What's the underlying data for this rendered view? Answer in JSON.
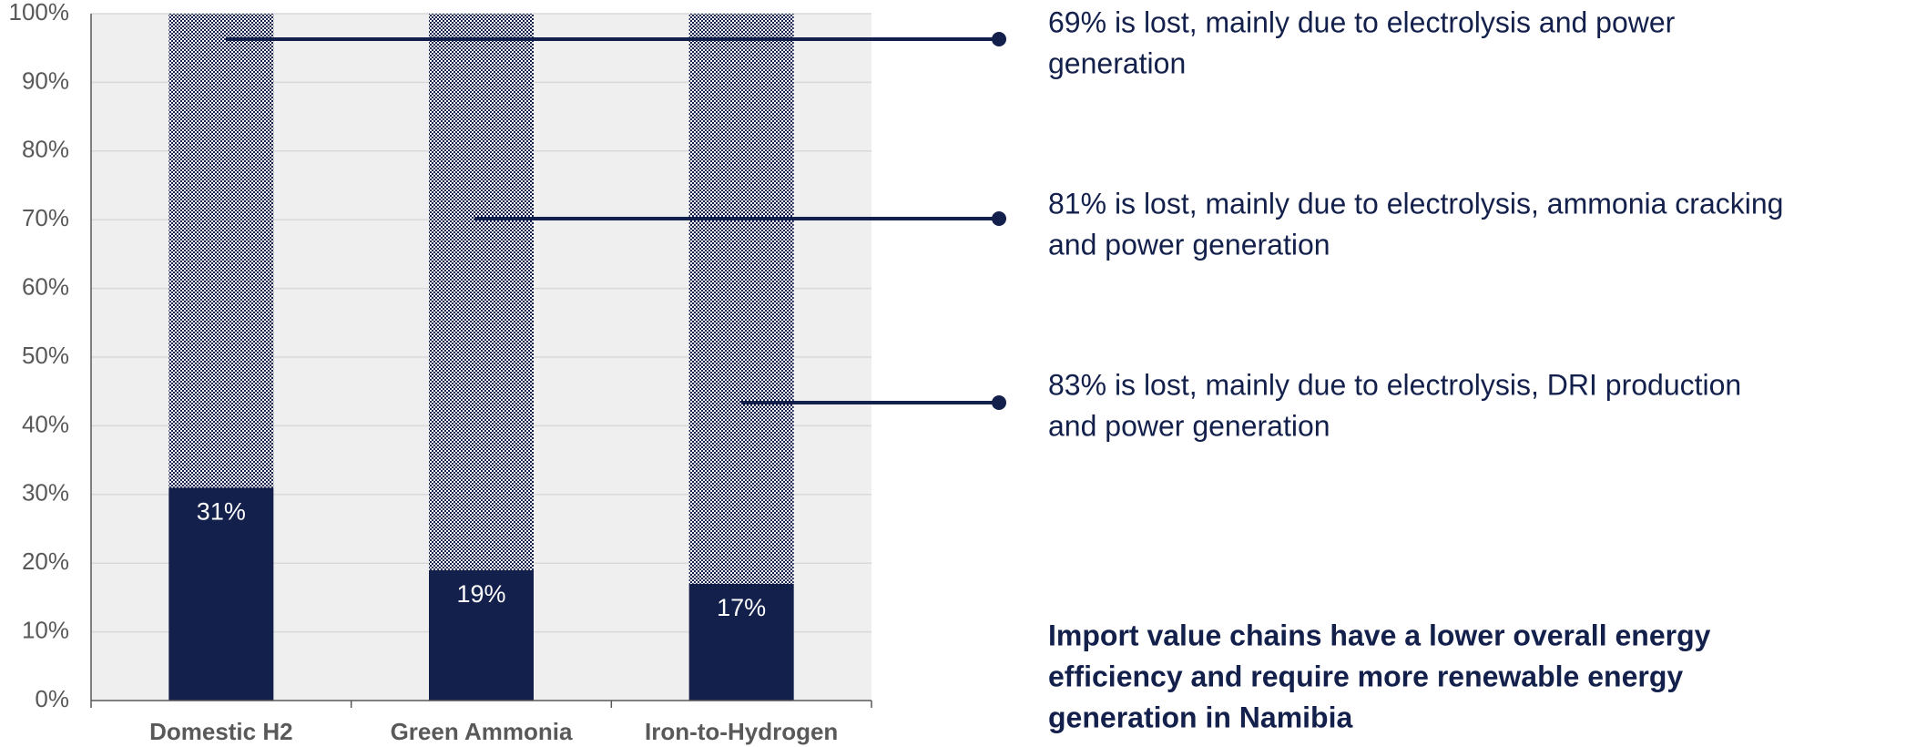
{
  "chart_data": {
    "type": "stacked_bar",
    "categories": [
      "Domestic H2",
      "Green Ammonia",
      "Iron-to-Hydrogen"
    ],
    "series": [
      {
        "color": "#13204b",
        "values": [
          31,
          19,
          17
        ],
        "value_labels": [
          "31%",
          "19%",
          "17%"
        ]
      },
      {
        "color": "#13204b",
        "pattern": "checker",
        "values": [
          69,
          81,
          83
        ]
      }
    ],
    "ylim": [
      0,
      100
    ],
    "yticks": [
      {
        "value": 0,
        "label": "0%"
      },
      {
        "value": 10,
        "label": "10%"
      },
      {
        "value": 20,
        "label": "20%"
      },
      {
        "value": 30,
        "label": "30%"
      },
      {
        "value": 40,
        "label": "40%"
      },
      {
        "value": 50,
        "label": "50%"
      },
      {
        "value": 60,
        "label": "60%"
      },
      {
        "value": 70,
        "label": "70%"
      },
      {
        "value": 80,
        "label": "80%"
      },
      {
        "value": 90,
        "label": "90%"
      },
      {
        "value": 100,
        "label": "100%"
      }
    ],
    "grid": true,
    "annotations": [
      [
        "69% is lost, mainly due to electrolysis and power",
        "generation"
      ],
      [
        "81% is lost, mainly due to electrolysis, ammonia cracking",
        "and power generation"
      ],
      [
        "83% is lost, mainly due to electrolysis, DRI production",
        "and power generation"
      ]
    ],
    "conclusion": [
      "Import value chains have a lower overall energy",
      "efficiency and require more renewable energy",
      "generation in Namibia"
    ]
  }
}
